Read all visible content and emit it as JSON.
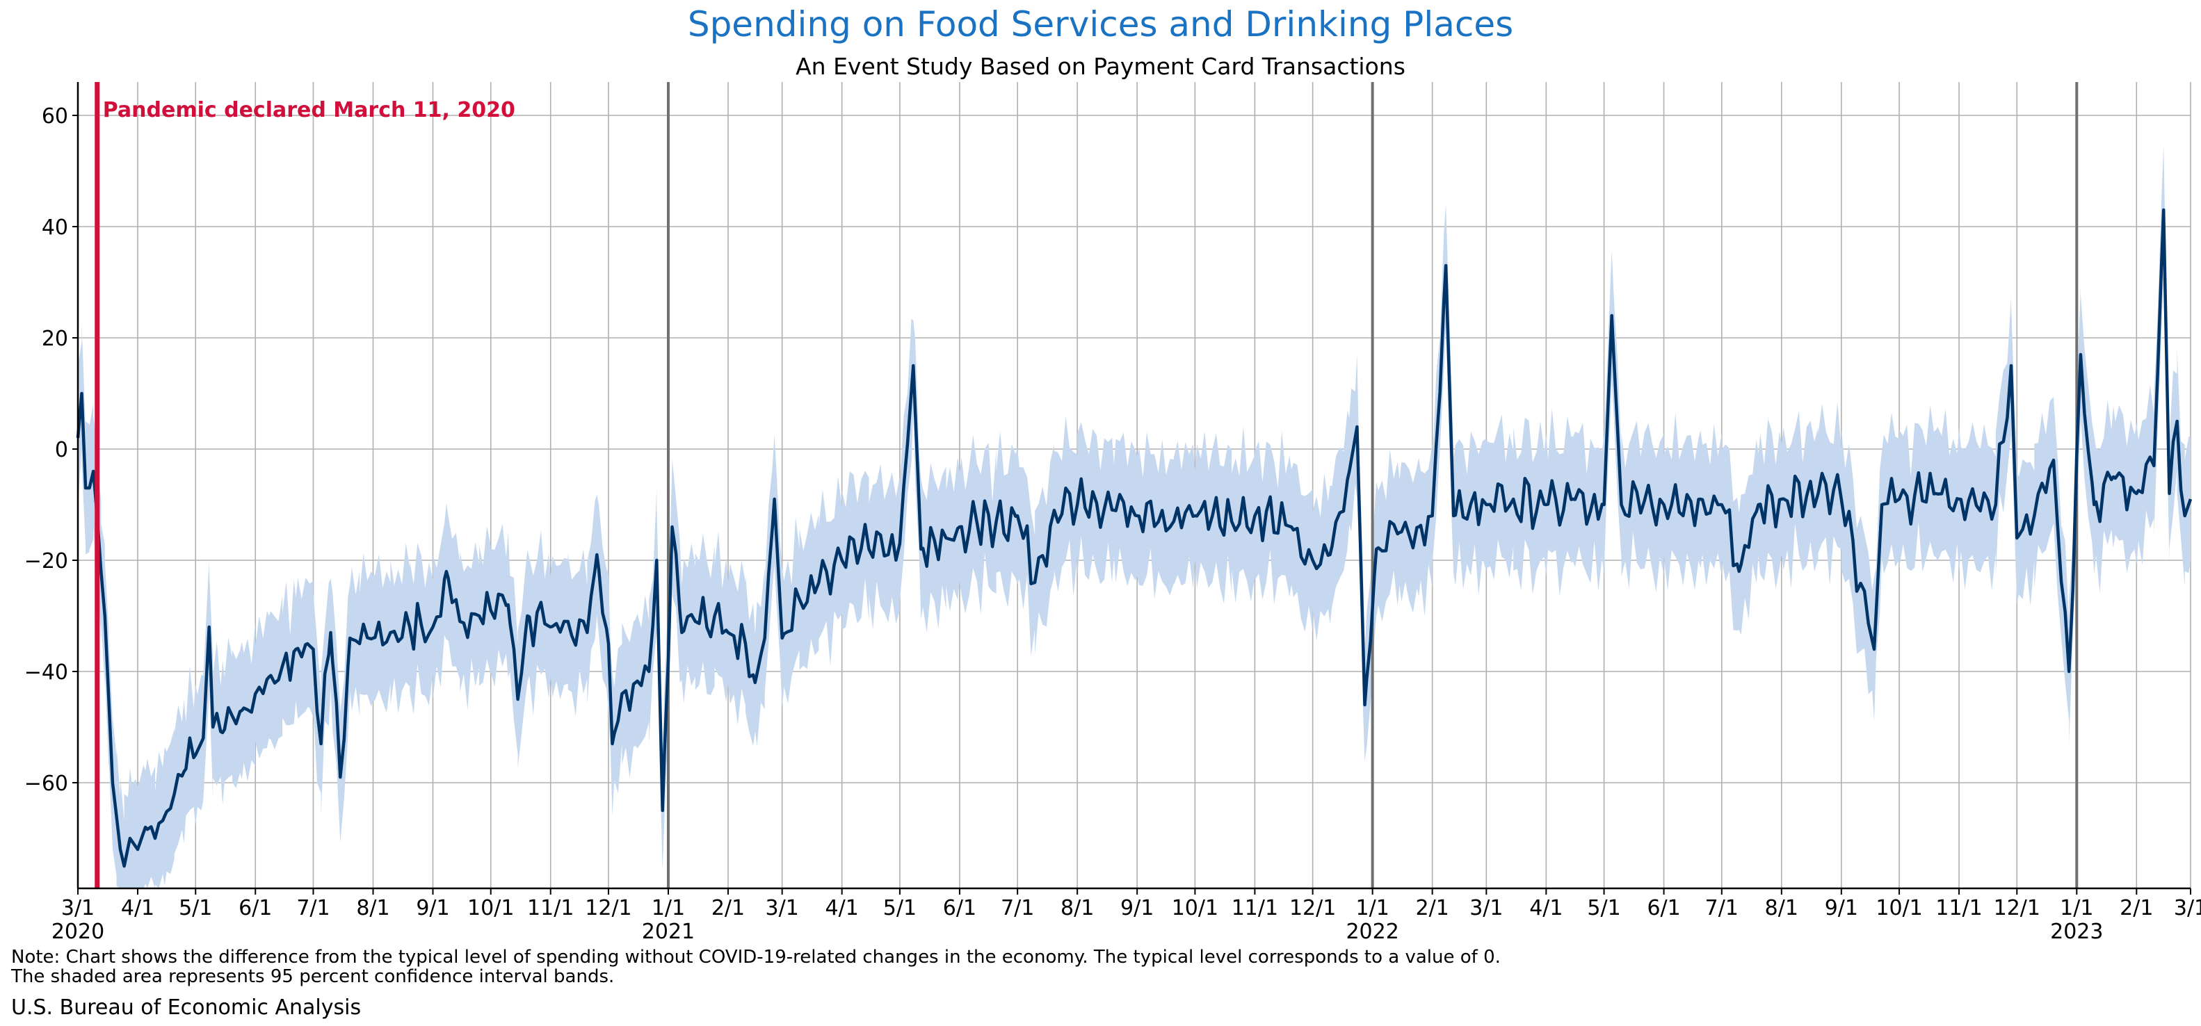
{
  "chart_data": {
    "type": "line",
    "title": "Spending on Food Services and Drinking Places",
    "subtitle": "An Event Study Based on Payment Card Transactions",
    "xlabel": "",
    "ylabel": "",
    "x_range": [
      "2020-03-01",
      "2023-03-01"
    ],
    "ylim": [
      -79,
      66
    ],
    "y_ticks": [
      60,
      40,
      20,
      0,
      -20,
      -40,
      -60
    ],
    "y_tick_labels": [
      "60",
      "40",
      "20",
      "0",
      "−20",
      "−40",
      "−60"
    ],
    "x_ticks": [
      {
        "date": "2020-03-01",
        "label": "3/1",
        "year": "2020"
      },
      {
        "date": "2020-04-01",
        "label": "4/1"
      },
      {
        "date": "2020-05-01",
        "label": "5/1"
      },
      {
        "date": "2020-06-01",
        "label": "6/1"
      },
      {
        "date": "2020-07-01",
        "label": "7/1"
      },
      {
        "date": "2020-08-01",
        "label": "8/1"
      },
      {
        "date": "2020-09-01",
        "label": "9/1"
      },
      {
        "date": "2020-10-01",
        "label": "10/1"
      },
      {
        "date": "2020-11-01",
        "label": "11/1"
      },
      {
        "date": "2020-12-01",
        "label": "12/1"
      },
      {
        "date": "2021-01-01",
        "label": "1/1",
        "year": "2021"
      },
      {
        "date": "2021-02-01",
        "label": "2/1"
      },
      {
        "date": "2021-03-01",
        "label": "3/1"
      },
      {
        "date": "2021-04-01",
        "label": "4/1"
      },
      {
        "date": "2021-05-01",
        "label": "5/1"
      },
      {
        "date": "2021-06-01",
        "label": "6/1"
      },
      {
        "date": "2021-07-01",
        "label": "7/1"
      },
      {
        "date": "2021-08-01",
        "label": "8/1"
      },
      {
        "date": "2021-09-01",
        "label": "9/1"
      },
      {
        "date": "2021-10-01",
        "label": "10/1"
      },
      {
        "date": "2021-11-01",
        "label": "11/1"
      },
      {
        "date": "2021-12-01",
        "label": "12/1"
      },
      {
        "date": "2022-01-01",
        "label": "1/1",
        "year": "2022"
      },
      {
        "date": "2022-02-01",
        "label": "2/1"
      },
      {
        "date": "2022-03-01",
        "label": "3/1"
      },
      {
        "date": "2022-04-01",
        "label": "4/1"
      },
      {
        "date": "2022-05-01",
        "label": "5/1"
      },
      {
        "date": "2022-06-01",
        "label": "6/1"
      },
      {
        "date": "2022-07-01",
        "label": "7/1"
      },
      {
        "date": "2022-08-01",
        "label": "8/1"
      },
      {
        "date": "2022-09-01",
        "label": "9/1"
      },
      {
        "date": "2022-10-01",
        "label": "10/1"
      },
      {
        "date": "2022-11-01",
        "label": "11/1"
      },
      {
        "date": "2022-12-01",
        "label": "12/1"
      },
      {
        "date": "2023-01-01",
        "label": "1/1",
        "year": "2023"
      },
      {
        "date": "2023-02-01",
        "label": "2/1"
      },
      {
        "date": "2023-03-01",
        "label": "3/1"
      }
    ],
    "year_lines": [
      "2021-01-01",
      "2022-01-01",
      "2023-01-01"
    ],
    "grid": true,
    "event": {
      "date": "2020-03-11",
      "label": "Pandemic declared March 11, 2020",
      "color": "#d0103a"
    },
    "series": [
      {
        "color": "#003366",
        "band_color": "#c5d8ef",
        "points": [
          [
            "2020-03-01",
            2
          ],
          [
            "2020-03-03",
            10
          ],
          [
            "2020-03-05",
            -7
          ],
          [
            "2020-03-07",
            -7
          ],
          [
            "2020-03-09",
            -4
          ],
          [
            "2020-03-11",
            -12
          ],
          [
            "2020-03-13",
            -22
          ],
          [
            "2020-03-15",
            -30
          ],
          [
            "2020-03-17",
            -45
          ],
          [
            "2020-03-19",
            -60
          ],
          [
            "2020-03-21",
            -66
          ],
          [
            "2020-03-23",
            -72
          ],
          [
            "2020-03-25",
            -75
          ],
          [
            "2020-03-28",
            -70
          ],
          [
            "2020-04-01",
            -72
          ],
          [
            "2020-04-05",
            -68
          ],
          [
            "2020-04-10",
            -70
          ],
          [
            "2020-04-15",
            -66
          ],
          [
            "2020-04-20",
            -62
          ],
          [
            "2020-04-25",
            -58
          ],
          [
            "2020-05-01",
            -55
          ],
          [
            "2020-05-05",
            -52
          ],
          [
            "2020-05-08",
            -32
          ],
          [
            "2020-05-10",
            -50
          ],
          [
            "2020-05-15",
            -51
          ],
          [
            "2020-05-20",
            -48
          ],
          [
            "2020-05-25",
            -47
          ],
          [
            "2020-06-01",
            -44
          ],
          [
            "2020-06-08",
            -41
          ],
          [
            "2020-06-15",
            -39
          ],
          [
            "2020-06-22",
            -36
          ],
          [
            "2020-06-28",
            -35
          ],
          [
            "2020-07-01",
            -36
          ],
          [
            "2020-07-05",
            -53
          ],
          [
            "2020-07-10",
            -33
          ],
          [
            "2020-07-15",
            -59
          ],
          [
            "2020-07-20",
            -34
          ],
          [
            "2020-07-25",
            -35
          ],
          [
            "2020-08-01",
            -34
          ],
          [
            "2020-08-10",
            -33
          ],
          [
            "2020-08-20",
            -32
          ],
          [
            "2020-09-01",
            -32
          ],
          [
            "2020-09-08",
            -22
          ],
          [
            "2020-09-15",
            -31
          ],
          [
            "2020-09-25",
            -30
          ],
          [
            "2020-10-01",
            -29
          ],
          [
            "2020-10-10",
            -28
          ],
          [
            "2020-10-15",
            -45
          ],
          [
            "2020-10-20",
            -30
          ],
          [
            "2020-11-01",
            -32
          ],
          [
            "2020-11-10",
            -31
          ],
          [
            "2020-11-20",
            -33
          ],
          [
            "2020-11-25",
            -19
          ],
          [
            "2020-12-01",
            -35
          ],
          [
            "2020-12-03",
            -53
          ],
          [
            "2020-12-08",
            -44
          ],
          [
            "2020-12-15",
            -42
          ],
          [
            "2020-12-22",
            -40
          ],
          [
            "2020-12-26",
            -20
          ],
          [
            "2020-12-29",
            -65
          ],
          [
            "2021-01-03",
            -14
          ],
          [
            "2021-01-08",
            -33
          ],
          [
            "2021-01-15",
            -31
          ],
          [
            "2021-01-25",
            -30
          ],
          [
            "2021-02-01",
            -33
          ],
          [
            "2021-02-10",
            -35
          ],
          [
            "2021-02-15",
            -42
          ],
          [
            "2021-02-20",
            -34
          ],
          [
            "2021-02-25",
            -9
          ],
          [
            "2021-03-01",
            -34
          ],
          [
            "2021-03-10",
            -27
          ],
          [
            "2021-03-20",
            -24
          ],
          [
            "2021-04-01",
            -20
          ],
          [
            "2021-04-15",
            -18
          ],
          [
            "2021-05-01",
            -17
          ],
          [
            "2021-05-08",
            15
          ],
          [
            "2021-05-12",
            -18
          ],
          [
            "2021-05-25",
            -16
          ],
          [
            "2021-06-01",
            -14
          ],
          [
            "2021-06-20",
            -13
          ],
          [
            "2021-07-01",
            -12
          ],
          [
            "2021-07-10",
            -24
          ],
          [
            "2021-07-20",
            -11
          ],
          [
            "2021-08-01",
            -10
          ],
          [
            "2021-08-20",
            -11
          ],
          [
            "2021-09-01",
            -12
          ],
          [
            "2021-09-20",
            -13
          ],
          [
            "2021-10-01",
            -12
          ],
          [
            "2021-10-20",
            -13
          ],
          [
            "2021-11-01",
            -12
          ],
          [
            "2021-11-20",
            -14
          ],
          [
            "2021-12-01",
            -20
          ],
          [
            "2021-12-10",
            -19
          ],
          [
            "2021-12-20",
            -4
          ],
          [
            "2021-12-24",
            4
          ],
          [
            "2021-12-28",
            -46
          ],
          [
            "2022-01-03",
            -18
          ],
          [
            "2022-01-15",
            -15
          ],
          [
            "2022-01-25",
            -14
          ],
          [
            "2022-02-01",
            -12
          ],
          [
            "2022-02-08",
            33
          ],
          [
            "2022-02-12",
            -12
          ],
          [
            "2022-03-01",
            -10
          ],
          [
            "2022-03-15",
            -9
          ],
          [
            "2022-04-01",
            -10
          ],
          [
            "2022-04-15",
            -9
          ],
          [
            "2022-05-01",
            -10
          ],
          [
            "2022-05-05",
            24
          ],
          [
            "2022-05-10",
            -10
          ],
          [
            "2022-06-01",
            -10
          ],
          [
            "2022-06-20",
            -9
          ],
          [
            "2022-07-01",
            -10
          ],
          [
            "2022-07-10",
            -22
          ],
          [
            "2022-07-20",
            -10
          ],
          [
            "2022-08-01",
            -9
          ],
          [
            "2022-08-20",
            -8
          ],
          [
            "2022-09-01",
            -9
          ],
          [
            "2022-09-18",
            -36
          ],
          [
            "2022-09-22",
            -10
          ],
          [
            "2022-10-01",
            -9
          ],
          [
            "2022-10-20",
            -8
          ],
          [
            "2022-11-01",
            -9
          ],
          [
            "2022-11-20",
            -10
          ],
          [
            "2022-11-28",
            15
          ],
          [
            "2022-12-01",
            -16
          ],
          [
            "2022-12-10",
            -12
          ],
          [
            "2022-12-20",
            -2
          ],
          [
            "2022-12-28",
            -40
          ],
          [
            "2023-01-01",
            -1
          ],
          [
            "2023-01-03",
            17
          ],
          [
            "2023-01-10",
            -10
          ],
          [
            "2023-01-20",
            -5
          ],
          [
            "2023-02-01",
            -8
          ],
          [
            "2023-02-10",
            -3
          ],
          [
            "2023-02-15",
            43
          ],
          [
            "2023-02-18",
            -8
          ],
          [
            "2023-02-22",
            5
          ],
          [
            "2023-02-26",
            -12
          ],
          [
            "2023-03-01",
            -9
          ]
        ],
        "band_halfwidth": 8
      }
    ]
  },
  "notes": {
    "line1": "Note: Chart shows the difference from the typical level of spending without COVID-19-related changes in the economy. The typical level corresponds to a value of 0.",
    "line2": "The shaded area represents 95 percent confidence interval bands."
  },
  "source": "U.S. Bureau of Economic Analysis"
}
